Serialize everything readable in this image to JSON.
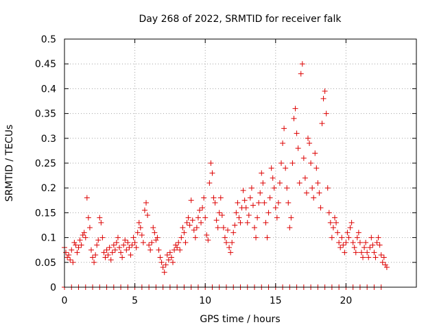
{
  "chart_data": {
    "type": "scatter",
    "title": "Day 268 of 2022, SRMTID for receiver falk",
    "xlabel": "GPS time / hours",
    "ylabel": "SRMTID / TECUs",
    "xlim": [
      0,
      25
    ],
    "ylim": [
      0,
      0.5
    ],
    "xticks": [
      0,
      5,
      10,
      15,
      20
    ],
    "xtick_labels": [
      "0",
      "5",
      "10",
      "15",
      "20"
    ],
    "yticks": [
      0,
      0.05,
      0.1,
      0.15,
      0.2,
      0.25,
      0.3,
      0.35,
      0.4,
      0.45,
      0.5
    ],
    "ytick_labels": [
      "0",
      "0.05",
      "0.1",
      "0.15",
      "0.2",
      "0.25",
      "0.3",
      "0.35",
      "0.4",
      "0.45",
      "0.5"
    ],
    "grid": true,
    "marker": "plus",
    "color": "#dd0000",
    "points": [
      [
        0.0,
        0.08
      ],
      [
        0.1,
        0.07
      ],
      [
        0.2,
        0.06
      ],
      [
        0.3,
        0.065
      ],
      [
        0.4,
        0.055
      ],
      [
        0.5,
        0.075
      ],
      [
        0.6,
        0.05
      ],
      [
        0.7,
        0.09
      ],
      [
        0.8,
        0.085
      ],
      [
        0.9,
        0.07
      ],
      [
        1.0,
        0.08
      ],
      [
        1.1,
        0.095
      ],
      [
        1.2,
        0.085
      ],
      [
        1.3,
        0.105
      ],
      [
        1.4,
        0.11
      ],
      [
        1.5,
        0.1
      ],
      [
        1.6,
        0.18
      ],
      [
        1.7,
        0.14
      ],
      [
        1.8,
        0.12
      ],
      [
        1.9,
        0.075
      ],
      [
        2.0,
        0.06
      ],
      [
        2.1,
        0.05
      ],
      [
        2.2,
        0.065
      ],
      [
        2.3,
        0.085
      ],
      [
        2.4,
        0.095
      ],
      [
        2.5,
        0.14
      ],
      [
        2.6,
        0.13
      ],
      [
        2.7,
        0.1
      ],
      [
        2.8,
        0.07
      ],
      [
        2.9,
        0.06
      ],
      [
        3.0,
        0.075
      ],
      [
        3.1,
        0.065
      ],
      [
        3.2,
        0.08
      ],
      [
        3.3,
        0.055
      ],
      [
        3.4,
        0.07
      ],
      [
        3.5,
        0.085
      ],
      [
        3.6,
        0.075
      ],
      [
        3.7,
        0.09
      ],
      [
        3.8,
        0.1
      ],
      [
        3.9,
        0.08
      ],
      [
        4.0,
        0.07
      ],
      [
        4.1,
        0.06
      ],
      [
        4.2,
        0.085
      ],
      [
        4.3,
        0.095
      ],
      [
        4.4,
        0.075
      ],
      [
        4.5,
        0.09
      ],
      [
        4.6,
        0.08
      ],
      [
        4.7,
        0.065
      ],
      [
        4.8,
        0.085
      ],
      [
        4.9,
        0.1
      ],
      [
        5.0,
        0.09
      ],
      [
        5.1,
        0.08
      ],
      [
        5.2,
        0.11
      ],
      [
        5.3,
        0.13
      ],
      [
        5.4,
        0.12
      ],
      [
        5.5,
        0.105
      ],
      [
        5.6,
        0.09
      ],
      [
        5.7,
        0.155
      ],
      [
        5.8,
        0.17
      ],
      [
        5.9,
        0.145
      ],
      [
        6.0,
        0.085
      ],
      [
        6.1,
        0.075
      ],
      [
        6.2,
        0.09
      ],
      [
        6.3,
        0.12
      ],
      [
        6.4,
        0.11
      ],
      [
        6.5,
        0.095
      ],
      [
        6.6,
        0.1
      ],
      [
        6.7,
        0.075
      ],
      [
        6.8,
        0.06
      ],
      [
        6.9,
        0.05
      ],
      [
        7.0,
        0.04
      ],
      [
        7.1,
        0.03
      ],
      [
        7.2,
        0.045
      ],
      [
        7.3,
        0.065
      ],
      [
        7.4,
        0.055
      ],
      [
        7.5,
        0.07
      ],
      [
        7.6,
        0.06
      ],
      [
        7.7,
        0.05
      ],
      [
        7.8,
        0.075
      ],
      [
        7.9,
        0.085
      ],
      [
        8.0,
        0.08
      ],
      [
        8.1,
        0.09
      ],
      [
        8.2,
        0.075
      ],
      [
        8.3,
        0.1
      ],
      [
        8.4,
        0.12
      ],
      [
        8.5,
        0.11
      ],
      [
        8.6,
        0.09
      ],
      [
        8.7,
        0.13
      ],
      [
        8.8,
        0.14
      ],
      [
        8.9,
        0.125
      ],
      [
        9.0,
        0.175
      ],
      [
        9.1,
        0.135
      ],
      [
        9.2,
        0.115
      ],
      [
        9.3,
        0.1
      ],
      [
        9.4,
        0.12
      ],
      [
        9.5,
        0.14
      ],
      [
        9.6,
        0.155
      ],
      [
        9.7,
        0.13
      ],
      [
        9.8,
        0.16
      ],
      [
        9.9,
        0.18
      ],
      [
        10.0,
        0.14
      ],
      [
        10.1,
        0.105
      ],
      [
        10.2,
        0.095
      ],
      [
        10.3,
        0.21
      ],
      [
        10.4,
        0.25
      ],
      [
        10.5,
        0.23
      ],
      [
        10.6,
        0.18
      ],
      [
        10.7,
        0.17
      ],
      [
        10.8,
        0.135
      ],
      [
        10.9,
        0.12
      ],
      [
        11.0,
        0.15
      ],
      [
        11.1,
        0.18
      ],
      [
        11.2,
        0.145
      ],
      [
        11.3,
        0.12
      ],
      [
        11.4,
        0.1
      ],
      [
        11.5,
        0.09
      ],
      [
        11.6,
        0.115
      ],
      [
        11.7,
        0.08
      ],
      [
        11.8,
        0.07
      ],
      [
        11.9,
        0.09
      ],
      [
        12.0,
        0.11
      ],
      [
        12.1,
        0.125
      ],
      [
        12.2,
        0.15
      ],
      [
        12.3,
        0.17
      ],
      [
        12.4,
        0.14
      ],
      [
        12.5,
        0.13
      ],
      [
        12.6,
        0.16
      ],
      [
        12.7,
        0.195
      ],
      [
        12.8,
        0.175
      ],
      [
        12.9,
        0.16
      ],
      [
        13.0,
        0.13
      ],
      [
        13.1,
        0.145
      ],
      [
        13.2,
        0.18
      ],
      [
        13.3,
        0.2
      ],
      [
        13.4,
        0.165
      ],
      [
        13.5,
        0.12
      ],
      [
        13.6,
        0.1
      ],
      [
        13.7,
        0.14
      ],
      [
        13.8,
        0.17
      ],
      [
        13.9,
        0.19
      ],
      [
        14.0,
        0.23
      ],
      [
        14.1,
        0.21
      ],
      [
        14.2,
        0.17
      ],
      [
        14.3,
        0.13
      ],
      [
        14.4,
        0.1
      ],
      [
        14.5,
        0.15
      ],
      [
        14.6,
        0.18
      ],
      [
        14.7,
        0.24
      ],
      [
        14.8,
        0.22
      ],
      [
        14.9,
        0.2
      ],
      [
        15.0,
        0.16
      ],
      [
        15.1,
        0.14
      ],
      [
        15.2,
        0.17
      ],
      [
        15.3,
        0.21
      ],
      [
        15.4,
        0.25
      ],
      [
        15.5,
        0.29
      ],
      [
        15.6,
        0.32
      ],
      [
        15.7,
        0.24
      ],
      [
        15.8,
        0.2
      ],
      [
        15.9,
        0.17
      ],
      [
        16.0,
        0.12
      ],
      [
        16.1,
        0.14
      ],
      [
        16.2,
        0.25
      ],
      [
        16.3,
        0.34
      ],
      [
        16.4,
        0.36
      ],
      [
        16.5,
        0.31
      ],
      [
        16.6,
        0.28
      ],
      [
        16.7,
        0.21
      ],
      [
        16.8,
        0.43
      ],
      [
        16.9,
        0.45
      ],
      [
        17.0,
        0.26
      ],
      [
        17.1,
        0.22
      ],
      [
        17.2,
        0.19
      ],
      [
        17.3,
        0.3
      ],
      [
        17.4,
        0.29
      ],
      [
        17.5,
        0.25
      ],
      [
        17.6,
        0.2
      ],
      [
        17.7,
        0.18
      ],
      [
        17.8,
        0.27
      ],
      [
        17.9,
        0.24
      ],
      [
        18.0,
        0.21
      ],
      [
        18.1,
        0.19
      ],
      [
        18.2,
        0.16
      ],
      [
        18.3,
        0.33
      ],
      [
        18.4,
        0.38
      ],
      [
        18.5,
        0.395
      ],
      [
        18.6,
        0.35
      ],
      [
        18.7,
        0.2
      ],
      [
        18.8,
        0.15
      ],
      [
        18.9,
        0.13
      ],
      [
        19.0,
        0.1
      ],
      [
        19.1,
        0.12
      ],
      [
        19.2,
        0.14
      ],
      [
        19.3,
        0.13
      ],
      [
        19.4,
        0.11
      ],
      [
        19.5,
        0.09
      ],
      [
        19.6,
        0.08
      ],
      [
        19.7,
        0.1
      ],
      [
        19.8,
        0.085
      ],
      [
        19.9,
        0.07
      ],
      [
        20.0,
        0.09
      ],
      [
        20.1,
        0.11
      ],
      [
        20.2,
        0.1
      ],
      [
        20.3,
        0.12
      ],
      [
        20.4,
        0.13
      ],
      [
        20.5,
        0.09
      ],
      [
        20.6,
        0.08
      ],
      [
        20.7,
        0.07
      ],
      [
        20.8,
        0.1
      ],
      [
        20.9,
        0.11
      ],
      [
        21.0,
        0.09
      ],
      [
        21.1,
        0.07
      ],
      [
        21.2,
        0.06
      ],
      [
        21.3,
        0.08
      ],
      [
        21.4,
        0.09
      ],
      [
        21.5,
        0.07
      ],
      [
        21.6,
        0.06
      ],
      [
        21.7,
        0.08
      ],
      [
        21.8,
        0.1
      ],
      [
        21.9,
        0.085
      ],
      [
        22.0,
        0.07
      ],
      [
        22.1,
        0.06
      ],
      [
        22.2,
        0.09
      ],
      [
        22.3,
        0.1
      ],
      [
        22.4,
        0.085
      ],
      [
        22.5,
        0.065
      ],
      [
        22.6,
        0.05
      ],
      [
        22.7,
        0.06
      ],
      [
        22.8,
        0.045
      ],
      [
        22.9,
        0.04
      ],
      [
        0.0,
        0.0
      ],
      [
        0.5,
        0.0
      ],
      [
        1.0,
        0.0
      ],
      [
        1.5,
        0.0
      ],
      [
        2.0,
        0.0
      ],
      [
        2.5,
        0.0
      ],
      [
        3.0,
        0.0
      ],
      [
        3.5,
        0.0
      ],
      [
        4.0,
        0.0
      ],
      [
        4.5,
        0.0
      ],
      [
        5.0,
        0.0
      ],
      [
        5.5,
        0.0
      ],
      [
        6.0,
        0.0
      ],
      [
        6.5,
        0.0
      ],
      [
        7.0,
        0.0
      ],
      [
        7.5,
        0.0
      ],
      [
        8.0,
        0.0
      ],
      [
        8.5,
        0.0
      ],
      [
        9.0,
        0.0
      ],
      [
        9.5,
        0.0
      ],
      [
        10.0,
        0.0
      ],
      [
        10.5,
        0.0
      ],
      [
        11.0,
        0.0
      ],
      [
        11.5,
        0.0
      ],
      [
        12.0,
        0.0
      ],
      [
        12.5,
        0.0
      ],
      [
        13.0,
        0.0
      ],
      [
        13.5,
        0.0
      ],
      [
        14.0,
        0.0
      ],
      [
        14.5,
        0.0
      ],
      [
        15.0,
        0.0
      ],
      [
        15.5,
        0.0
      ],
      [
        16.0,
        0.0
      ],
      [
        16.5,
        0.0
      ],
      [
        17.0,
        0.0
      ],
      [
        17.5,
        0.0
      ],
      [
        18.0,
        0.0
      ],
      [
        18.5,
        0.0
      ],
      [
        19.0,
        0.0
      ],
      [
        19.5,
        0.0
      ],
      [
        20.0,
        0.0
      ],
      [
        20.5,
        0.0
      ],
      [
        21.0,
        0.0
      ],
      [
        21.5,
        0.0
      ],
      [
        22.0,
        0.0
      ],
      [
        22.5,
        0.0
      ]
    ]
  }
}
